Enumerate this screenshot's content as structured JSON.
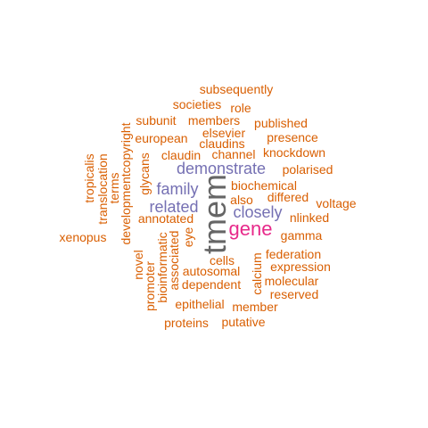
{
  "words": {
    "tmem": "tmem",
    "gene": "gene",
    "demonstrate": "demonstrate",
    "family": "family",
    "related": "related",
    "closely": "closely",
    "subsequently": "subsequently",
    "societies": "societies",
    "role": "role",
    "subunit": "subunit",
    "members": "members",
    "published": "published",
    "european": "european",
    "elsevier": "elsevier",
    "presence": "presence",
    "claudins": "claudins",
    "knockdown": "knockdown",
    "claudin": "claudin",
    "channel": "channel",
    "polarised": "polarised",
    "biochemical": "biochemical",
    "differed": "differed",
    "also": "also",
    "voltage": "voltage",
    "annotated": "annotated",
    "nlinked": "nlinked",
    "gamma": "gamma",
    "xenopus": "xenopus",
    "federation": "federation",
    "cells": "cells",
    "expression": "expression",
    "autosomal": "autosomal",
    "molecular": "molecular",
    "dependent": "dependent",
    "reserved": "reserved",
    "epithelial": "epithelial",
    "member": "member",
    "proteins": "proteins",
    "putative": "putative",
    "tropicalis": "tropicalis",
    "translocation": "translocation",
    "terms": "terms",
    "developmentcopyright": "developmentcopyright",
    "glycans": "glycans",
    "novel": "novel",
    "promoter": "promoter",
    "bioinformatic": "bioinformatic",
    "associated": "associated",
    "eye": "eye",
    "calcium": "calcium"
  },
  "colors": {
    "orange": "#d95f02",
    "purple": "#7570b3",
    "magenta": "#e7298a",
    "gray": "#666666"
  }
}
